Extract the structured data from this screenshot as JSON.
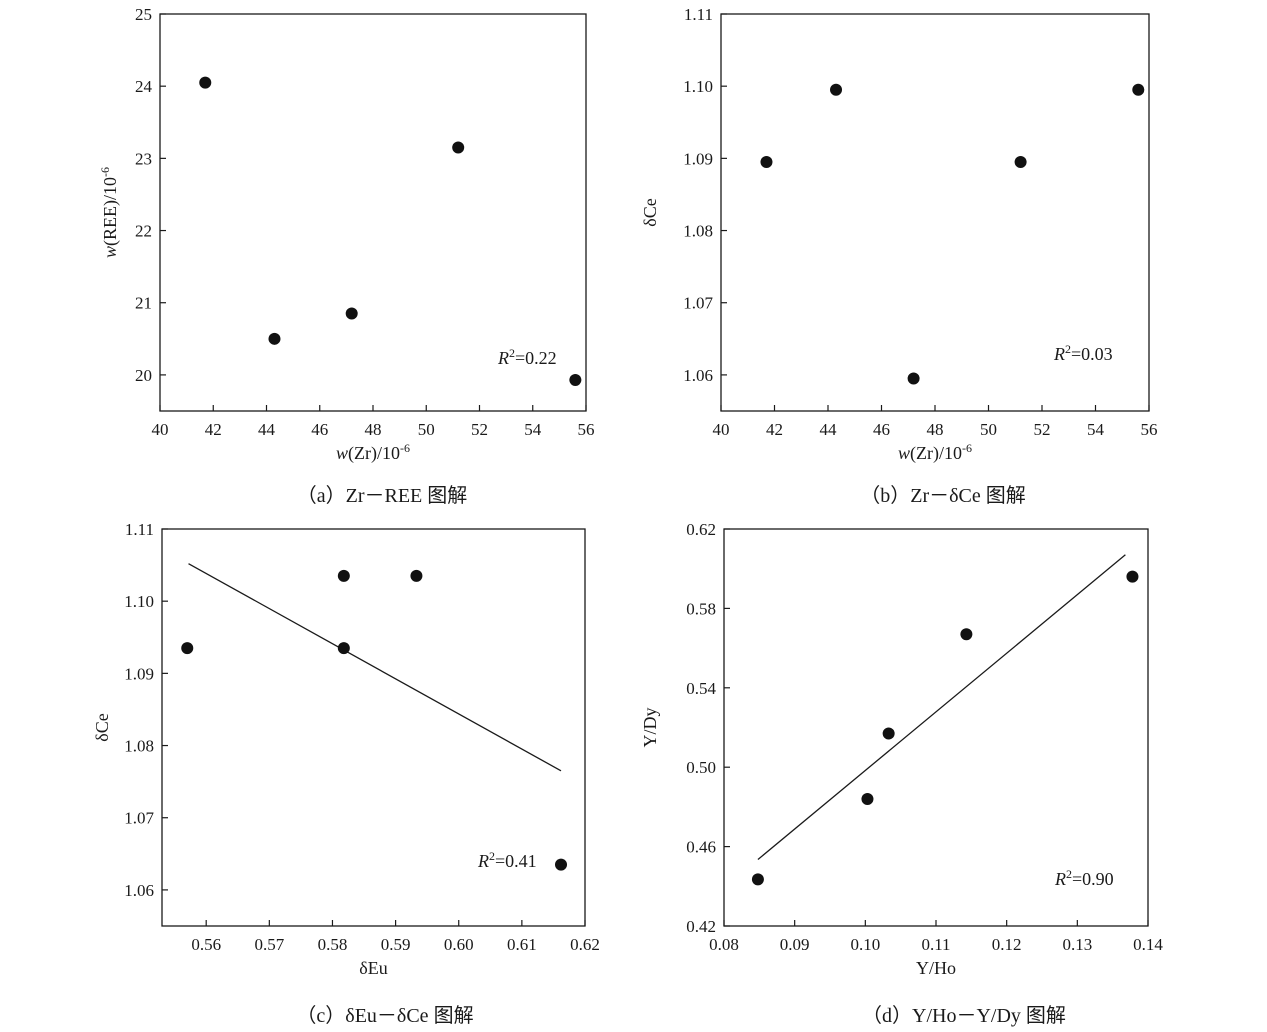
{
  "chart_data": [
    {
      "type": "scatter",
      "caption": "（a）Zr－REE 图解",
      "xlabel": "w(Zr)/10-6",
      "ylabel": "w(REE)/10-6",
      "xlim": [
        40,
        56
      ],
      "ylim": [
        19.5,
        25
      ],
      "xticks": [
        "40",
        "42",
        "44",
        "46",
        "48",
        "50",
        "52",
        "54",
        "56"
      ],
      "yticks": [
        "20",
        "21",
        "22",
        "23",
        "24",
        "25"
      ],
      "points": [
        {
          "x": 41.7,
          "y": 24.05
        },
        {
          "x": 44.3,
          "y": 20.5
        },
        {
          "x": 47.2,
          "y": 20.85
        },
        {
          "x": 51.2,
          "y": 23.15
        },
        {
          "x": 55.6,
          "y": 19.93
        }
      ],
      "r2_label": "=0.22",
      "fit_line": null
    },
    {
      "type": "scatter",
      "caption": "（b）Zr－δCe 图解",
      "xlabel": "w(Zr)/10-6",
      "ylabel": "δCe",
      "xlim": [
        40,
        56
      ],
      "ylim": [
        1.055,
        1.11
      ],
      "xticks": [
        "40",
        "42",
        "44",
        "46",
        "48",
        "50",
        "52",
        "54",
        "56"
      ],
      "yticks": [
        "1.06",
        "1.07",
        "1.08",
        "1.09",
        "1.10",
        "1.11"
      ],
      "points": [
        {
          "x": 41.7,
          "y": 1.0895
        },
        {
          "x": 44.3,
          "y": 1.0995
        },
        {
          "x": 47.2,
          "y": 1.0595
        },
        {
          "x": 51.2,
          "y": 1.0895
        },
        {
          "x": 55.6,
          "y": 1.0995
        }
      ],
      "r2_label": "=0.03",
      "fit_line": null
    },
    {
      "type": "scatter",
      "caption": "（c）δEu－δCe 图解",
      "xlabel": "δEu",
      "ylabel": "δCe",
      "xlim": [
        0.553,
        0.62
      ],
      "ylim": [
        1.055,
        1.11
      ],
      "xticks": [
        "0.56",
        "0.57",
        "0.58",
        "0.59",
        "0.60",
        "0.61",
        "0.62"
      ],
      "yticks": [
        "1.06",
        "1.07",
        "1.08",
        "1.09",
        "1.10",
        "1.11"
      ],
      "points": [
        {
          "x": 0.557,
          "y": 1.0935
        },
        {
          "x": 0.5818,
          "y": 1.1035
        },
        {
          "x": 0.5818,
          "y": 1.0935
        },
        {
          "x": 0.5933,
          "y": 1.1035
        },
        {
          "x": 0.6162,
          "y": 1.0635
        }
      ],
      "r2_label": "=0.41",
      "fit_line": {
        "x1": 0.5572,
        "y1": 1.1052,
        "x2": 0.6162,
        "y2": 1.0765
      }
    },
    {
      "type": "scatter",
      "caption": "（d）Y/Ho－Y/Dy 图解",
      "xlabel": "Y/Ho",
      "ylabel": "Y/Dy",
      "xlim": [
        0.08,
        0.14
      ],
      "ylim": [
        0.42,
        0.62
      ],
      "xticks": [
        "0.08",
        "0.09",
        "0.10",
        "0.11",
        "0.12",
        "0.13",
        "0.14"
      ],
      "yticks": [
        "0.42",
        "0.46",
        "0.50",
        "0.54",
        "0.58",
        "0.62"
      ],
      "points": [
        {
          "x": 0.0848,
          "y": 0.4435
        },
        {
          "x": 0.1003,
          "y": 0.484
        },
        {
          "x": 0.1033,
          "y": 0.517
        },
        {
          "x": 0.1143,
          "y": 0.567
        },
        {
          "x": 0.1378,
          "y": 0.596
        }
      ],
      "r2_label": "=0.90",
      "fit_line": {
        "x1": 0.0848,
        "y1": 0.4535,
        "x2": 0.1368,
        "y2": 0.607
      }
    }
  ]
}
